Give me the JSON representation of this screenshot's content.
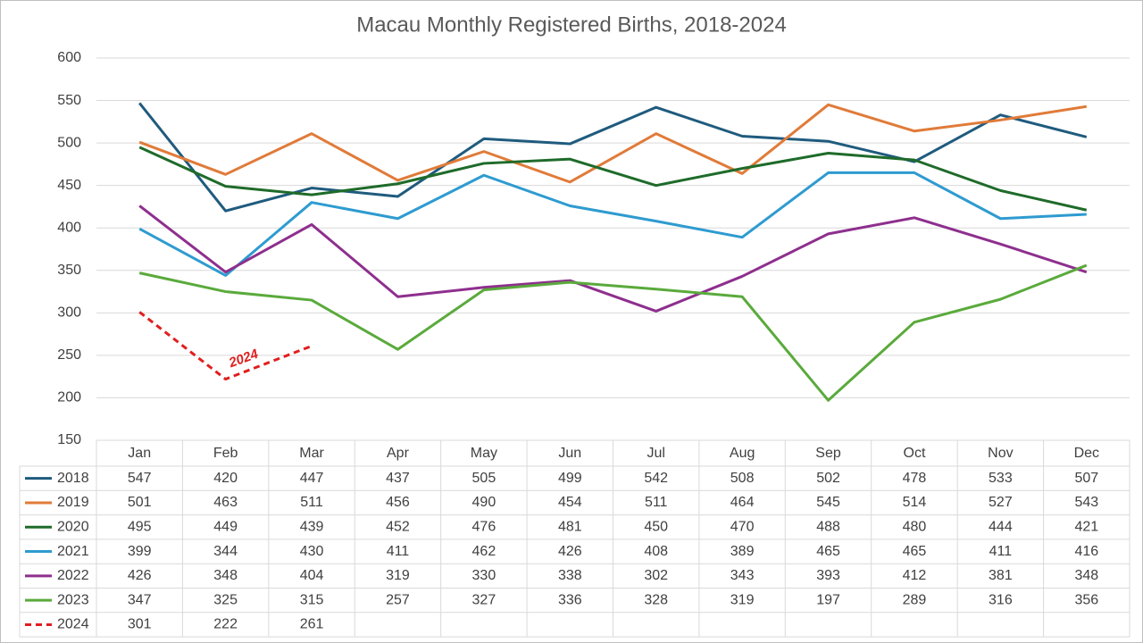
{
  "chart_data": {
    "type": "line",
    "title": "Macau Monthly Registered Births, 2018-2024",
    "categories": [
      "Jan",
      "Feb",
      "Mar",
      "Apr",
      "May",
      "Jun",
      "Jul",
      "Aug",
      "Sep",
      "Oct",
      "Nov",
      "Dec"
    ],
    "series": [
      {
        "name": "2018",
        "color": "#1f5b7e",
        "values": [
          547,
          420,
          447,
          437,
          505,
          499,
          542,
          508,
          502,
          478,
          533,
          507
        ]
      },
      {
        "name": "2019",
        "color": "#e07b39",
        "values": [
          501,
          463,
          511,
          456,
          490,
          454,
          511,
          464,
          545,
          514,
          527,
          543
        ]
      },
      {
        "name": "2020",
        "color": "#1e6b2a",
        "values": [
          495,
          449,
          439,
          452,
          476,
          481,
          450,
          470,
          488,
          480,
          444,
          421
        ]
      },
      {
        "name": "2021",
        "color": "#2e9bd0",
        "values": [
          399,
          344,
          430,
          411,
          462,
          426,
          408,
          389,
          465,
          465,
          411,
          416
        ]
      },
      {
        "name": "2022",
        "color": "#8e2f8e",
        "values": [
          426,
          348,
          404,
          319,
          330,
          338,
          302,
          343,
          393,
          412,
          381,
          348
        ]
      },
      {
        "name": "2023",
        "color": "#5aaa3c",
        "values": [
          347,
          325,
          315,
          257,
          327,
          336,
          328,
          319,
          197,
          289,
          316,
          356
        ]
      },
      {
        "name": "2024",
        "color": "#e01e1e",
        "dashed": true,
        "values": [
          301,
          222,
          261,
          null,
          null,
          null,
          null,
          null,
          null,
          null,
          null,
          null
        ]
      }
    ],
    "annotations": [
      {
        "text": "2024",
        "color": "#e01e1e"
      }
    ],
    "ylim": [
      150,
      600
    ],
    "yticks": [
      150,
      200,
      250,
      300,
      350,
      400,
      450,
      500,
      550,
      600
    ],
    "grid": true,
    "data_table": true
  }
}
